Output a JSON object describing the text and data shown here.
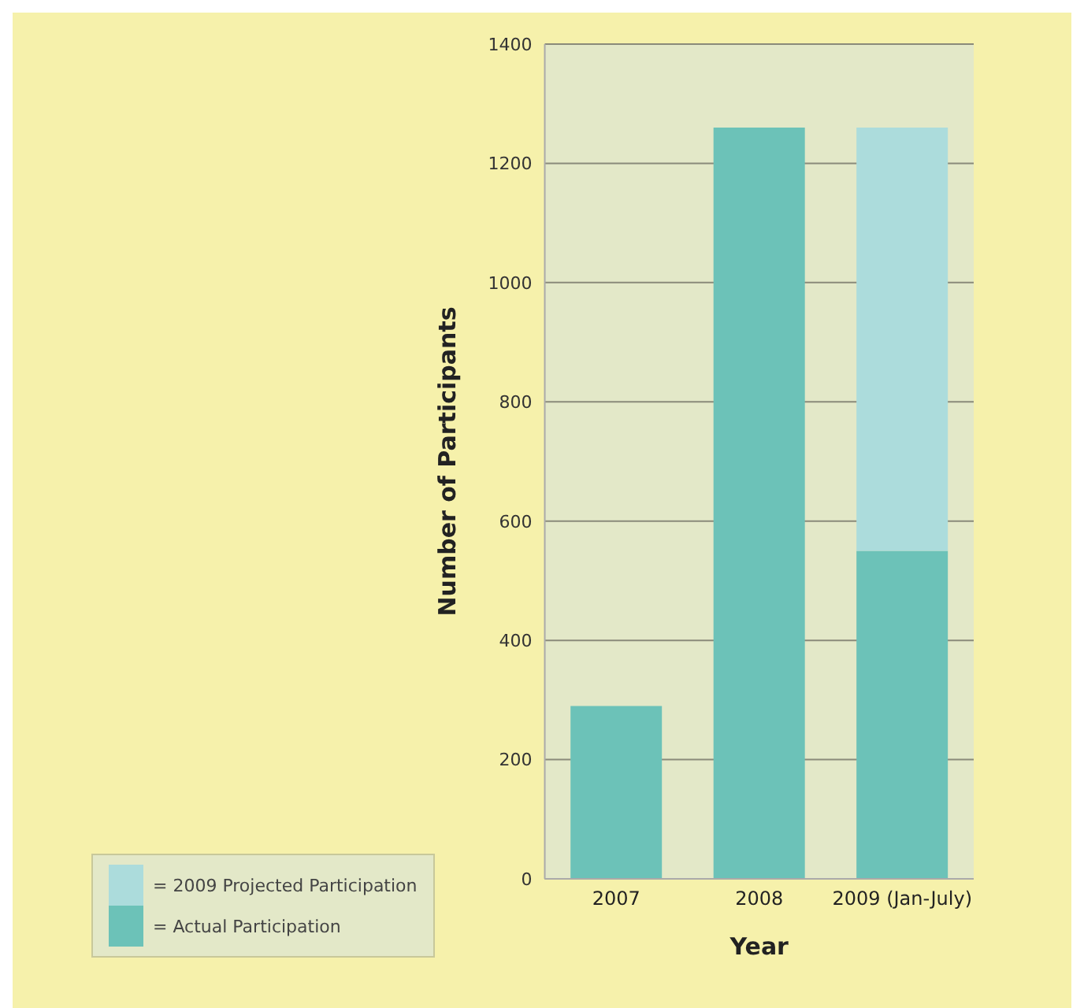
{
  "chart_data": {
    "type": "bar",
    "xlabel": "Year",
    "ylabel": "Number of Participants",
    "categories": [
      "2007",
      "2008",
      "2009 (Jan-July)"
    ],
    "stacked": true,
    "series": [
      {
        "name": "= Actual Participation",
        "color": "#6cc2b8",
        "values": [
          290,
          1260,
          550
        ]
      },
      {
        "name": "= 2009 Projected Participation",
        "color": "#acdcdc",
        "values": [
          null,
          null,
          710
        ]
      }
    ],
    "ylim": [
      0,
      1400
    ],
    "yticks": [
      0,
      200,
      400,
      600,
      800,
      1000,
      1200,
      1400
    ],
    "grid": "y",
    "legend": "bottom left"
  }
}
